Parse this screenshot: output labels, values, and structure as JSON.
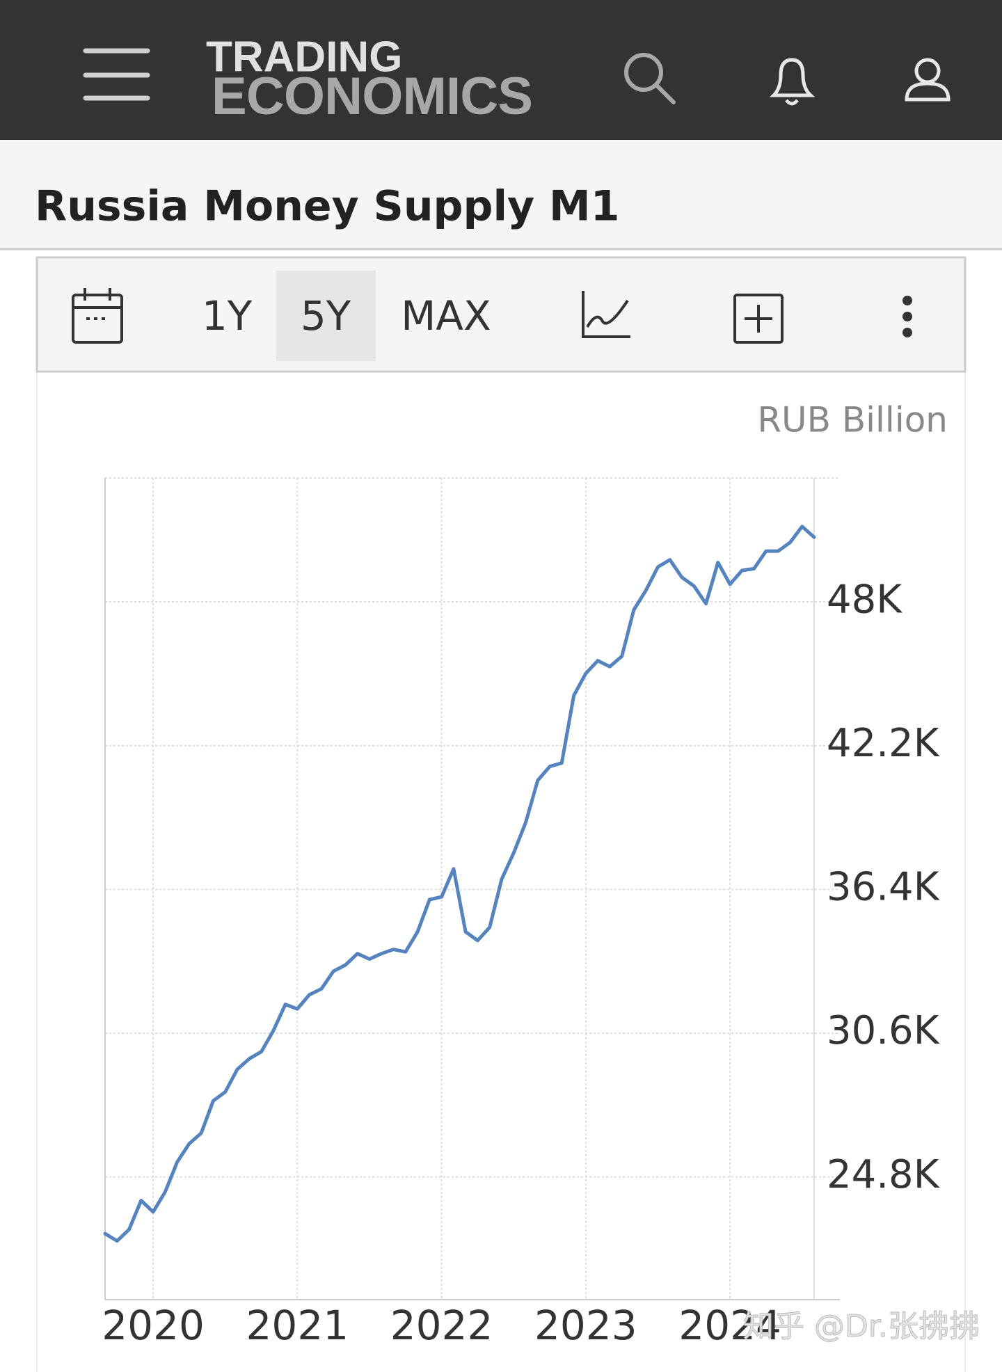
{
  "header": {
    "logo_top": "TRADING",
    "logo_bottom": "ECONOMICS"
  },
  "title": "Russia Money Supply M1",
  "toolbar": {
    "ranges": [
      "1Y",
      "5Y",
      "MAX"
    ],
    "active": "5Y"
  },
  "watermark": "知乎 @Dr.张拂拂",
  "chart_data": {
    "type": "line",
    "unit": "RUB Billion",
    "x": [
      "2019-09",
      "2019-10",
      "2019-11",
      "2019-12",
      "2020-01",
      "2020-02",
      "2020-03",
      "2020-04",
      "2020-05",
      "2020-06",
      "2020-07",
      "2020-08",
      "2020-09",
      "2020-10",
      "2020-11",
      "2020-12",
      "2021-01",
      "2021-02",
      "2021-03",
      "2021-04",
      "2021-05",
      "2021-06",
      "2021-07",
      "2021-08",
      "2021-09",
      "2021-10",
      "2021-11",
      "2021-12",
      "2022-01",
      "2022-02",
      "2022-03",
      "2022-04",
      "2022-05",
      "2022-06",
      "2022-07",
      "2022-08",
      "2022-09",
      "2022-10",
      "2022-11",
      "2022-12",
      "2023-01",
      "2023-02",
      "2023-03",
      "2023-04",
      "2023-05",
      "2023-06",
      "2023-07",
      "2023-08",
      "2023-09",
      "2023-10",
      "2023-11",
      "2023-12",
      "2024-01",
      "2024-02",
      "2024-03",
      "2024-04",
      "2024-05",
      "2024-06",
      "2024-07",
      "2024-08"
    ],
    "series": [
      {
        "name": "Russia Money Supply M1",
        "color": "#5583c0",
        "values": [
          22510,
          22220,
          22680,
          23850,
          23390,
          24200,
          25400,
          26140,
          26570,
          27870,
          28230,
          29140,
          29570,
          29850,
          30700,
          31760,
          31580,
          32150,
          32390,
          33100,
          33350,
          33810,
          33590,
          33810,
          33980,
          33880,
          34690,
          35990,
          36100,
          37230,
          34690,
          34340,
          34870,
          36810,
          37870,
          39100,
          40800,
          41360,
          41500,
          44220,
          45110,
          45630,
          45390,
          45810,
          47680,
          48460,
          49410,
          49700,
          48990,
          48640,
          47930,
          49590,
          48710,
          49270,
          49340,
          50050,
          50050,
          50400,
          51040,
          50610
        ]
      }
    ],
    "xlim": [
      "2019-09",
      "2024-08"
    ],
    "xticks": [
      {
        "value": "2020-01",
        "label": "2020"
      },
      {
        "value": "2021-01",
        "label": "2021"
      },
      {
        "value": "2022-01",
        "label": "2022"
      },
      {
        "value": "2023-01",
        "label": "2023"
      },
      {
        "value": "2024-01",
        "label": "2024"
      }
    ],
    "ylim": [
      19850,
      53000
    ],
    "yticks": [
      {
        "value": 24800,
        "label": "24.8K"
      },
      {
        "value": 30600,
        "label": "30.6K"
      },
      {
        "value": 36400,
        "label": "36.4K"
      },
      {
        "value": 42200,
        "label": "42.2K"
      },
      {
        "value": 48000,
        "label": "48K"
      }
    ],
    "grid": true
  }
}
